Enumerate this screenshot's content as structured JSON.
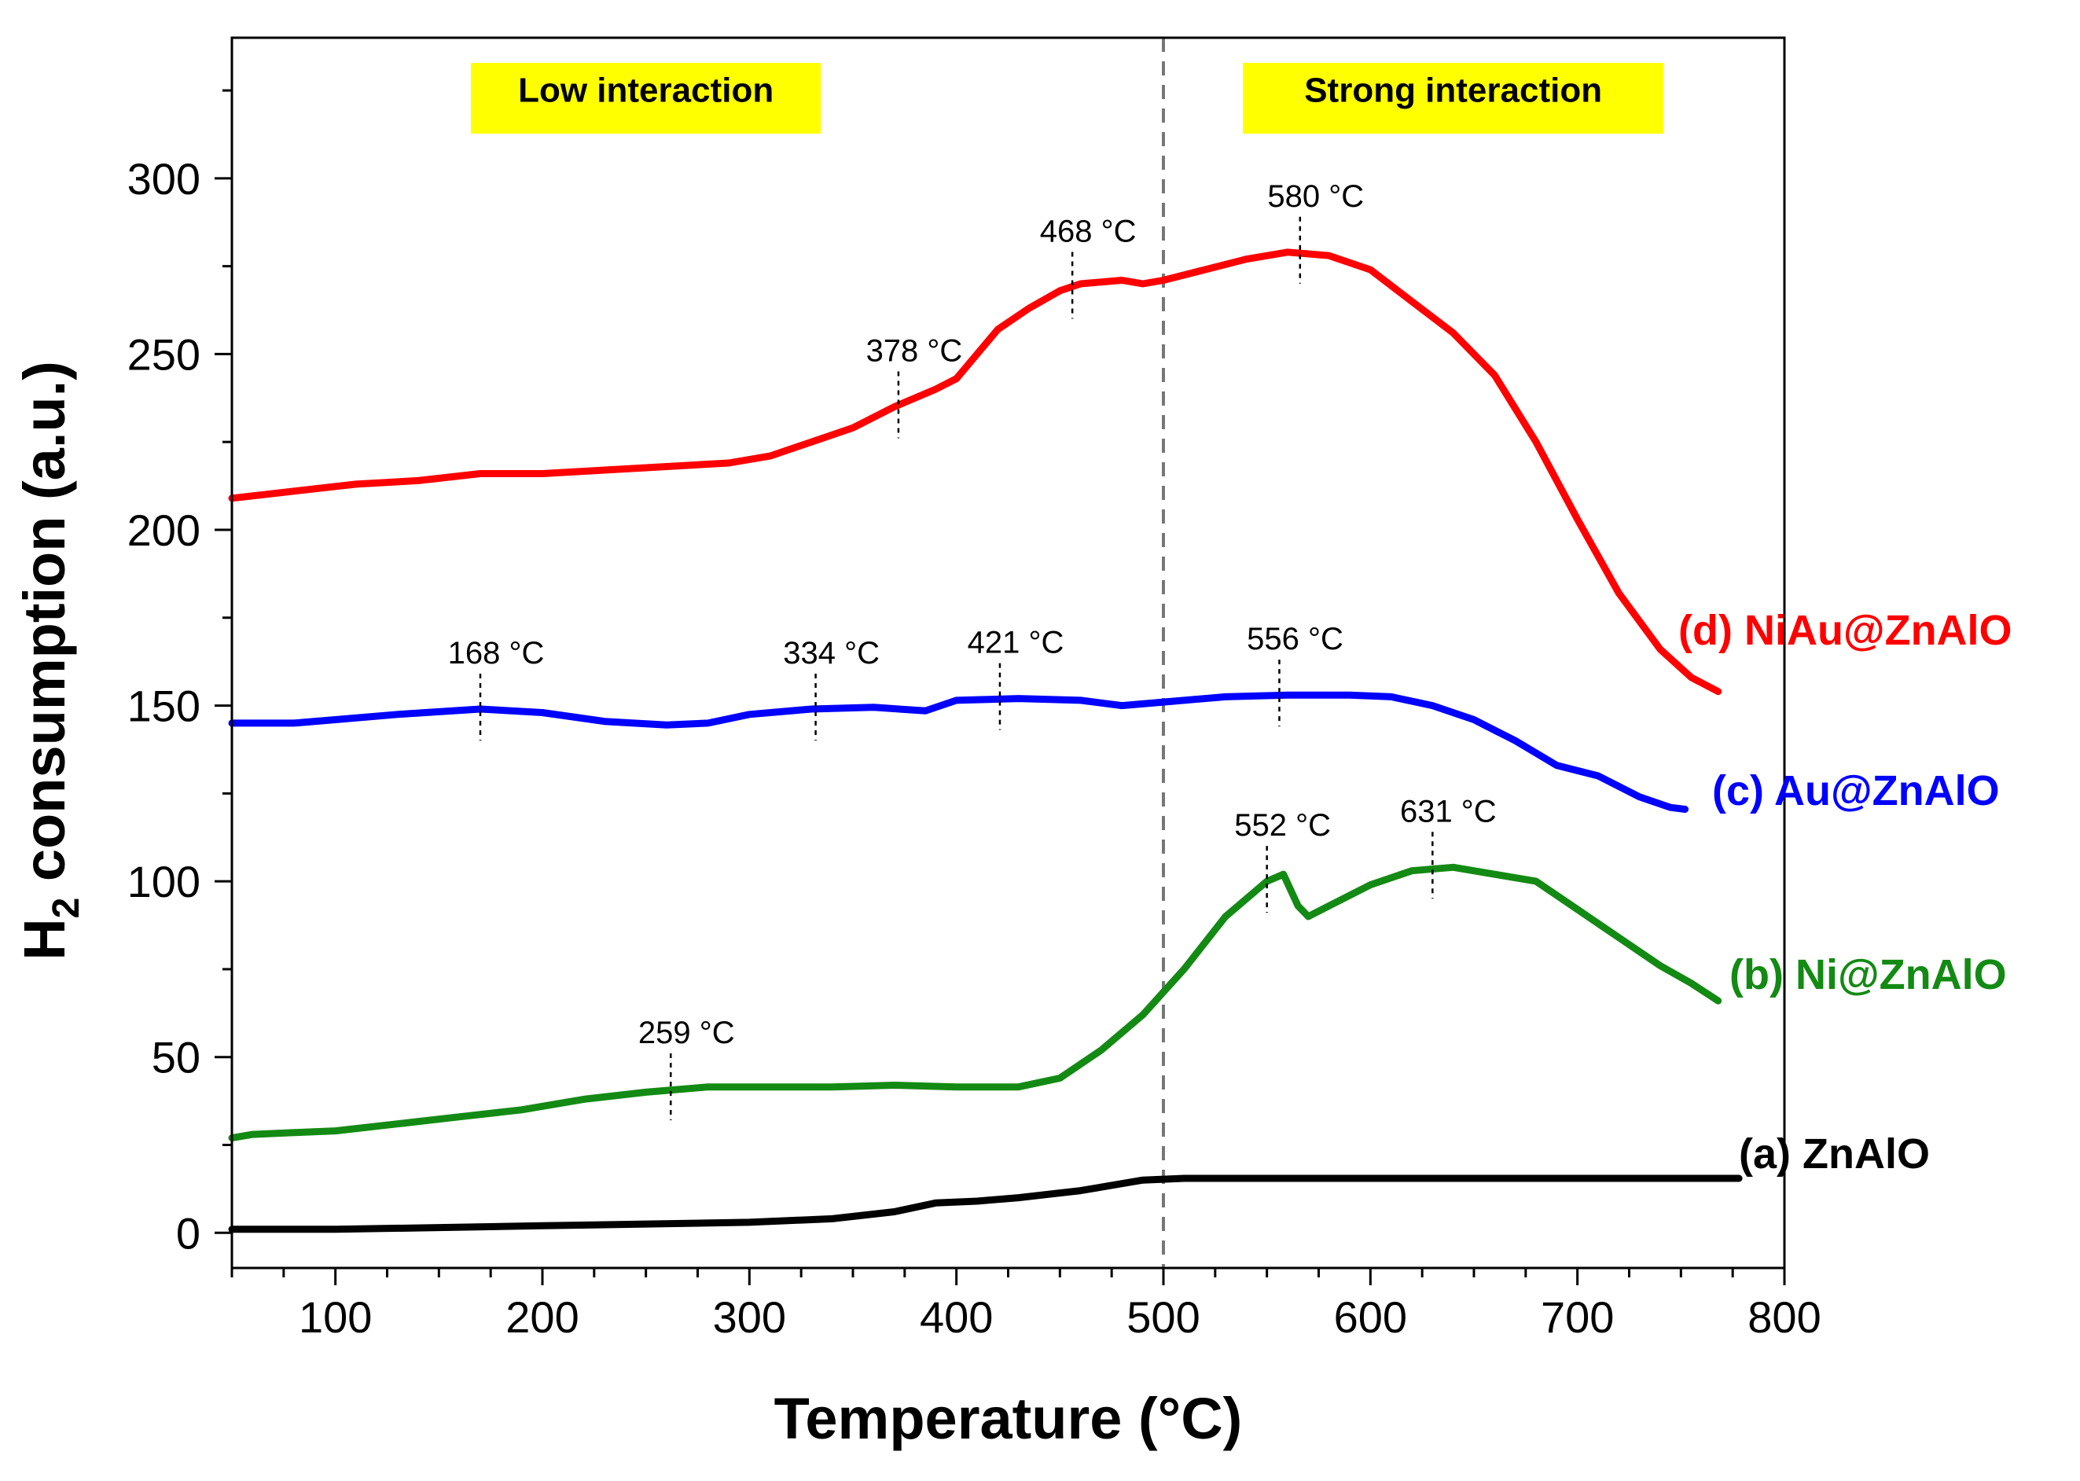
{
  "chart_data": {
    "type": "line",
    "xlabel": "Temperature (°C)",
    "ylabel_main": "H",
    "ylabel_sub": "2",
    "ylabel_rest": " consumption (a.u.)",
    "xlim": [
      50,
      800
    ],
    "ylim": [
      -10,
      340
    ],
    "x_ticks": [
      100,
      200,
      300,
      400,
      500,
      600,
      700,
      800
    ],
    "y_ticks": [
      0,
      50,
      100,
      150,
      200,
      250,
      300
    ],
    "divider_x": 500,
    "regions": [
      {
        "text": "Low interaction",
        "x_center": 250,
        "color": "#ffff00"
      },
      {
        "text": "Strong interaction",
        "x_center": 640,
        "color": "#ffff00"
      }
    ],
    "series": [
      {
        "name": "(a) ZnAlO",
        "color": "#000000",
        "points": [
          [
            50,
            1
          ],
          [
            100,
            1
          ],
          [
            150,
            1.5
          ],
          [
            200,
            2
          ],
          [
            250,
            2.5
          ],
          [
            300,
            3
          ],
          [
            340,
            4
          ],
          [
            370,
            6
          ],
          [
            390,
            8.5
          ],
          [
            410,
            9
          ],
          [
            430,
            10
          ],
          [
            460,
            12
          ],
          [
            490,
            15
          ],
          [
            510,
            15.5
          ],
          [
            550,
            15.5
          ],
          [
            600,
            15.5
          ],
          [
            650,
            15.5
          ],
          [
            700,
            15.5
          ],
          [
            750,
            15.5
          ],
          [
            778,
            15.5
          ]
        ]
      },
      {
        "name": "(b) Ni@ZnAlO",
        "color": "#138a13",
        "points": [
          [
            50,
            27
          ],
          [
            60,
            28
          ],
          [
            80,
            28.5
          ],
          [
            100,
            29
          ],
          [
            130,
            31
          ],
          [
            160,
            33
          ],
          [
            190,
            35
          ],
          [
            220,
            38
          ],
          [
            250,
            40
          ],
          [
            280,
            41.5
          ],
          [
            310,
            41.5
          ],
          [
            340,
            41.5
          ],
          [
            370,
            42
          ],
          [
            400,
            41.5
          ],
          [
            430,
            41.5
          ],
          [
            450,
            44
          ],
          [
            470,
            52
          ],
          [
            490,
            62
          ],
          [
            510,
            75
          ],
          [
            530,
            90
          ],
          [
            550,
            100
          ],
          [
            558,
            102
          ],
          [
            565,
            93
          ],
          [
            570,
            90
          ],
          [
            580,
            93
          ],
          [
            600,
            99
          ],
          [
            620,
            103
          ],
          [
            640,
            104
          ],
          [
            660,
            102
          ],
          [
            680,
            100
          ],
          [
            700,
            92
          ],
          [
            720,
            84
          ],
          [
            740,
            76
          ],
          [
            755,
            71
          ],
          [
            768,
            66
          ]
        ],
        "peaks": [
          {
            "label": "259 °C",
            "x": 262,
            "y": 41
          },
          {
            "label": "552 °C",
            "x": 550,
            "y": 100
          },
          {
            "label": "631 °C",
            "x": 630,
            "y": 104
          }
        ]
      },
      {
        "name": "(c)  Au@ZnAlO",
        "color": "#0000ff",
        "points": [
          [
            50,
            145
          ],
          [
            80,
            145
          ],
          [
            100,
            146
          ],
          [
            130,
            147.5
          ],
          [
            170,
            149
          ],
          [
            200,
            148
          ],
          [
            230,
            145.5
          ],
          [
            260,
            144.5
          ],
          [
            280,
            145
          ],
          [
            300,
            147.5
          ],
          [
            330,
            149
          ],
          [
            360,
            149.5
          ],
          [
            385,
            148.5
          ],
          [
            400,
            151.5
          ],
          [
            430,
            152
          ],
          [
            460,
            151.5
          ],
          [
            480,
            150
          ],
          [
            500,
            151
          ],
          [
            530,
            152.5
          ],
          [
            560,
            153
          ],
          [
            590,
            153
          ],
          [
            610,
            152.5
          ],
          [
            630,
            150
          ],
          [
            650,
            146
          ],
          [
            670,
            140
          ],
          [
            690,
            133
          ],
          [
            710,
            130
          ],
          [
            730,
            124
          ],
          [
            745,
            121
          ],
          [
            752,
            120.5
          ]
        ],
        "peaks": [
          {
            "label": "168 °C",
            "x": 170,
            "y": 149
          },
          {
            "label": "334 °C",
            "x": 332,
            "y": 149
          },
          {
            "label": "421 °C",
            "x": 421,
            "y": 152
          },
          {
            "label": "556 °C",
            "x": 556,
            "y": 153
          }
        ]
      },
      {
        "name": "(d) NiAu@ZnAlO",
        "color": "#ff0000",
        "points": [
          [
            50,
            209
          ],
          [
            80,
            211
          ],
          [
            110,
            213
          ],
          [
            140,
            214
          ],
          [
            170,
            216
          ],
          [
            200,
            216
          ],
          [
            230,
            217
          ],
          [
            260,
            218
          ],
          [
            290,
            219
          ],
          [
            310,
            221
          ],
          [
            330,
            225
          ],
          [
            350,
            229
          ],
          [
            370,
            235
          ],
          [
            390,
            240
          ],
          [
            400,
            243
          ],
          [
            410,
            250
          ],
          [
            420,
            257
          ],
          [
            435,
            263
          ],
          [
            450,
            268
          ],
          [
            460,
            270
          ],
          [
            480,
            271
          ],
          [
            490,
            270
          ],
          [
            500,
            271
          ],
          [
            520,
            274
          ],
          [
            540,
            277
          ],
          [
            560,
            279
          ],
          [
            580,
            278
          ],
          [
            600,
            274
          ],
          [
            620,
            265
          ],
          [
            640,
            256
          ],
          [
            660,
            244
          ],
          [
            680,
            225
          ],
          [
            700,
            203
          ],
          [
            720,
            182
          ],
          [
            740,
            166
          ],
          [
            755,
            158
          ],
          [
            768,
            154
          ]
        ],
        "peaks": [
          {
            "label": "378 °C",
            "x": 372,
            "y": 235
          },
          {
            "label": "468 °C",
            "x": 456,
            "y": 269
          },
          {
            "label": "580 °C",
            "x": 566,
            "y": 279
          }
        ]
      }
    ]
  }
}
